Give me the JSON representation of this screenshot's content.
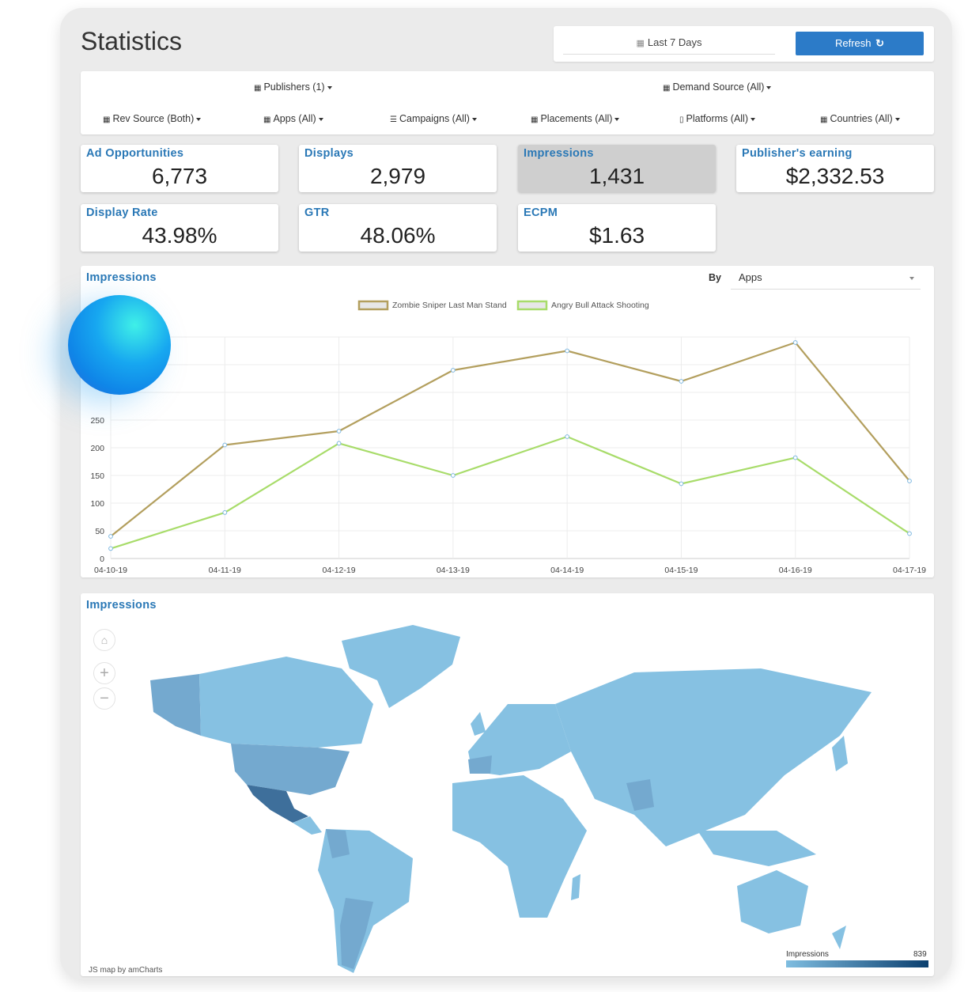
{
  "page": {
    "title": "Statistics"
  },
  "toolbar": {
    "date_range": "Last 7 Days",
    "refresh_label": "Refresh"
  },
  "filters": {
    "publishers": "Publishers (1)",
    "demand_source": "Demand Source (All)",
    "rev_source": "Rev Source (Both)",
    "apps": "Apps (All)",
    "campaigns": "Campaigns (All)",
    "placements": "Placements (All)",
    "platforms": "Platforms (All)",
    "countries": "Countries (All)"
  },
  "metrics": [
    {
      "label": "Ad Opportunities",
      "value": "6,773"
    },
    {
      "label": "Displays",
      "value": "2,979"
    },
    {
      "label": "Impressions",
      "value": "1,431"
    },
    {
      "label": "Publisher's earning",
      "value": "$2,332.53"
    },
    {
      "label": "Display Rate",
      "value": "43.98%"
    },
    {
      "label": "GTR",
      "value": "48.06%"
    },
    {
      "label": "ECPM",
      "value": "$1.63"
    }
  ],
  "line_panel": {
    "title": "Impressions",
    "by_label": "By",
    "by_value": "Apps"
  },
  "chart_data": {
    "type": "line",
    "categories": [
      "04-10-19",
      "04-11-19",
      "04-12-19",
      "04-13-19",
      "04-14-19",
      "04-15-19",
      "04-16-19",
      "04-17-19"
    ],
    "series": [
      {
        "name": "Zombie Sniper Last Man Stand",
        "color": "#b39f5e",
        "values": [
          40,
          205,
          230,
          340,
          375,
          320,
          390,
          140
        ]
      },
      {
        "name": "Angry Bull Attack Shooting",
        "color": "#a8dc6a",
        "values": [
          18,
          83,
          208,
          150,
          220,
          135,
          182,
          45
        ]
      }
    ],
    "yticks": [
      "0",
      "50",
      "100",
      "150",
      "200",
      "250"
    ],
    "ylim": [
      0,
      400
    ],
    "grid": true,
    "legend": "top-center"
  },
  "map_panel": {
    "title": "Impressions",
    "credit": "JS map by amCharts",
    "legend_title": "Impressions",
    "legend_max": "839",
    "colors": {
      "land": "#86c1e2",
      "mid": "#74a9cf",
      "dark": "#3e6f9b"
    }
  },
  "icons": {
    "calendar": "calendar-icon",
    "refresh": "refresh-icon",
    "home": "home-icon",
    "zoom_in": "plus-icon",
    "zoom_out": "minus-icon"
  }
}
